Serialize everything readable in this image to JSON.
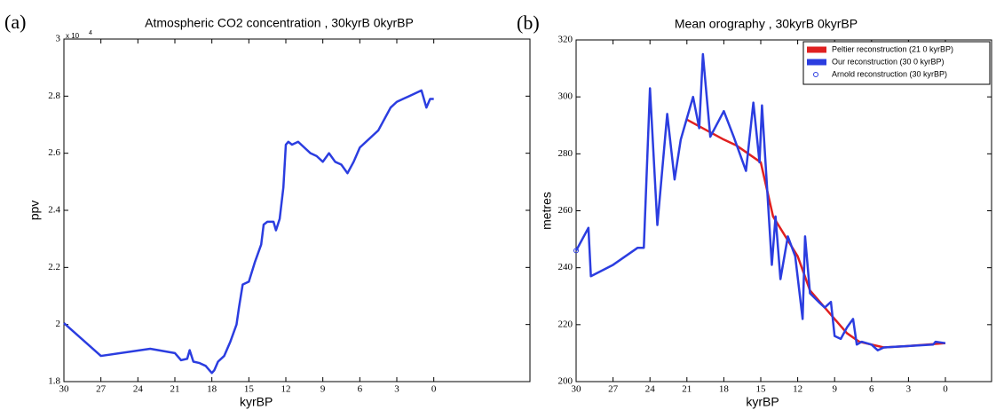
{
  "chart_data": [
    {
      "type": "line",
      "panel_label": "(a)",
      "title": "Atmospheric CO2 concentration , 30kyrB    0kyrBP",
      "x_label": "kyrBP",
      "y_label": "ppv",
      "y_multiplier": "x 10",
      "y_exponent": "4",
      "xlim": [
        30,
        -7.8
      ],
      "xticks": [
        30,
        27,
        24,
        21,
        18,
        15,
        12,
        9,
        6,
        3,
        0
      ],
      "ylim": [
        1.8,
        3
      ],
      "yticks": [
        1.8,
        2,
        2.2,
        2.4,
        2.6,
        2.8,
        3
      ],
      "color": "#2b3de0",
      "x": [
        30,
        27,
        23,
        21,
        20.5,
        20,
        19.8,
        19.5,
        19,
        18.5,
        18.2,
        18,
        17.8,
        17.5,
        17,
        16.5,
        16,
        15.8,
        15.5,
        15,
        14.5,
        14,
        13.8,
        13.5,
        13,
        12.8,
        12.5,
        12.2,
        12,
        11.8,
        11.5,
        11,
        10.5,
        10,
        9.5,
        9,
        8.5,
        8,
        7.5,
        7,
        6.5,
        6,
        5.5,
        5,
        4.5,
        4,
        3.5,
        3,
        2.5,
        2,
        1.5,
        1,
        0.6,
        0.3,
        0
      ],
      "values": [
        2.005,
        1.89,
        1.915,
        1.9,
        1.875,
        1.88,
        1.91,
        1.87,
        1.865,
        1.855,
        1.84,
        1.83,
        1.84,
        1.87,
        1.89,
        1.94,
        2.0,
        2.06,
        2.14,
        2.15,
        2.22,
        2.28,
        2.35,
        2.36,
        2.36,
        2.33,
        2.37,
        2.48,
        2.63,
        2.64,
        2.63,
        2.64,
        2.62,
        2.6,
        2.59,
        2.57,
        2.6,
        2.57,
        2.56,
        2.53,
        2.57,
        2.62,
        2.64,
        2.66,
        2.68,
        2.72,
        2.76,
        2.78,
        2.79,
        2.8,
        2.81,
        2.82,
        2.76,
        2.79,
        2.79
      ]
    },
    {
      "type": "line",
      "panel_label": "(b)",
      "title": "Mean orography , 30kyrB    0kyrBP",
      "x_label": "kyrBP",
      "y_label": "metres",
      "legend": "upper right",
      "xlim": [
        30,
        -3.75
      ],
      "xticks": [
        30,
        27,
        24,
        21,
        18,
        15,
        12,
        9,
        6,
        3,
        0
      ],
      "ylim": [
        200,
        320
      ],
      "yticks": [
        200,
        220,
        240,
        260,
        280,
        300,
        320
      ],
      "series": [
        {
          "name": "Peltier reconstruction (21    0 kyrBP)",
          "color": "#e02020",
          "x": [
            21,
            18,
            17,
            15,
            14,
            12,
            11,
            9,
            8,
            7,
            5,
            3,
            0
          ],
          "values": [
            292,
            285,
            283,
            277,
            258,
            244,
            232,
            222,
            217,
            214,
            212,
            212.5,
            213.5
          ]
        },
        {
          "name": "Our reconstruction (30    0 kyrBP)",
          "color": "#2b3de0",
          "x": [
            30,
            29,
            28.8,
            27,
            25,
            24.5,
            24,
            23.4,
            22.6,
            22,
            21.5,
            20.5,
            20,
            19.7,
            19.1,
            18,
            17.2,
            16.2,
            15.6,
            15.1,
            14.9,
            14.1,
            13.8,
            13.4,
            12.8,
            12.2,
            11.6,
            11.4,
            11,
            10.3,
            9.8,
            9.3,
            9,
            8.5,
            8,
            7.5,
            7.2,
            6.8,
            6,
            5.5,
            5,
            3,
            1,
            0.8,
            0
          ],
          "values": [
            246,
            254,
            237,
            241,
            247,
            247,
            303,
            255,
            294,
            271,
            285,
            300,
            289,
            315,
            286,
            295,
            286,
            274,
            298,
            277,
            297,
            241,
            258,
            236,
            251,
            244,
            222,
            251,
            231,
            228,
            226,
            228,
            216,
            215,
            219,
            222,
            213,
            214,
            213,
            211,
            212,
            212.5,
            213,
            214,
            213.5
          ]
        },
        {
          "name": "Arnold reconstruction (30 kyrBP)",
          "color": "#2b3de0",
          "marker": "circle",
          "x": [
            30
          ],
          "values": [
            246
          ]
        }
      ]
    }
  ]
}
